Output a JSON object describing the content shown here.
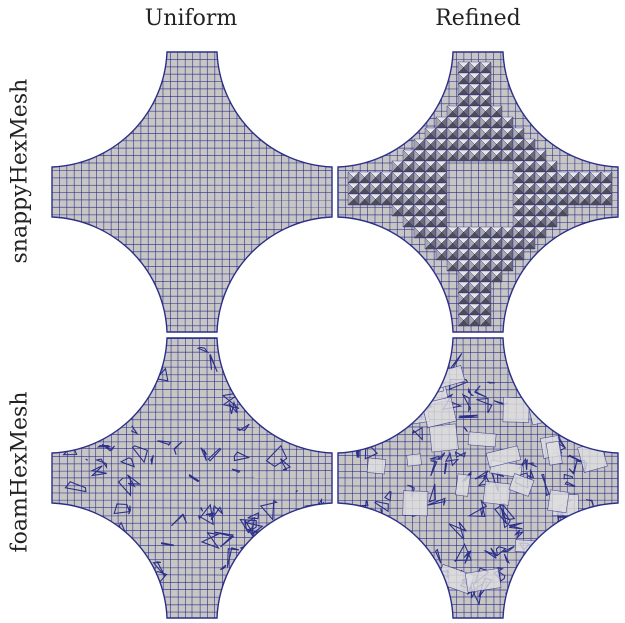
{
  "columns": [
    "Uniform",
    "Refined"
  ],
  "rows": [
    "snappyHexMesh",
    "foamHexMesh"
  ],
  "panels": [
    {
      "row": "snappyHexMesh",
      "column": "Uniform",
      "style": "uniform-grid"
    },
    {
      "row": "snappyHexMesh",
      "column": "Refined",
      "style": "refined-pyramids"
    },
    {
      "row": "foamHexMesh",
      "column": "Uniform",
      "style": "uniform-irregular"
    },
    {
      "row": "foamHexMesh",
      "column": "Refined",
      "style": "refined-irregular"
    }
  ],
  "colors": {
    "mesh_fill": "#c8c6c4",
    "mesh_line": "#2b2f8a",
    "refine_dark": "#6d6c74",
    "refine_light": "#e6e5e6"
  }
}
